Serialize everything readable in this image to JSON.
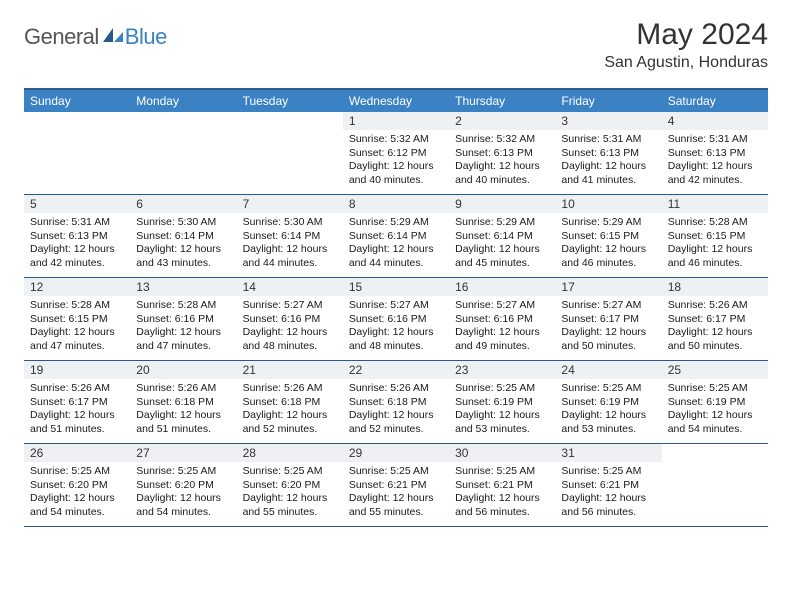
{
  "brand": {
    "word1": "General",
    "word2": "Blue"
  },
  "title": "May 2024",
  "location": "San Agustin, Honduras",
  "colors": {
    "header_bar": "#3b82c4",
    "rule": "#2a5a8a",
    "daynum_bg": "#eef1f3",
    "text": "#1a1a1a",
    "background": "#ffffff"
  },
  "dow": [
    "Sunday",
    "Monday",
    "Tuesday",
    "Wednesday",
    "Thursday",
    "Friday",
    "Saturday"
  ],
  "grid": {
    "lead_blanks": 3,
    "days": [
      {
        "n": "1",
        "sr": "5:32 AM",
        "ss": "6:12 PM",
        "dl": "12 hours and 40 minutes."
      },
      {
        "n": "2",
        "sr": "5:32 AM",
        "ss": "6:13 PM",
        "dl": "12 hours and 40 minutes."
      },
      {
        "n": "3",
        "sr": "5:31 AM",
        "ss": "6:13 PM",
        "dl": "12 hours and 41 minutes."
      },
      {
        "n": "4",
        "sr": "5:31 AM",
        "ss": "6:13 PM",
        "dl": "12 hours and 42 minutes."
      },
      {
        "n": "5",
        "sr": "5:31 AM",
        "ss": "6:13 PM",
        "dl": "12 hours and 42 minutes."
      },
      {
        "n": "6",
        "sr": "5:30 AM",
        "ss": "6:14 PM",
        "dl": "12 hours and 43 minutes."
      },
      {
        "n": "7",
        "sr": "5:30 AM",
        "ss": "6:14 PM",
        "dl": "12 hours and 44 minutes."
      },
      {
        "n": "8",
        "sr": "5:29 AM",
        "ss": "6:14 PM",
        "dl": "12 hours and 44 minutes."
      },
      {
        "n": "9",
        "sr": "5:29 AM",
        "ss": "6:14 PM",
        "dl": "12 hours and 45 minutes."
      },
      {
        "n": "10",
        "sr": "5:29 AM",
        "ss": "6:15 PM",
        "dl": "12 hours and 46 minutes."
      },
      {
        "n": "11",
        "sr": "5:28 AM",
        "ss": "6:15 PM",
        "dl": "12 hours and 46 minutes."
      },
      {
        "n": "12",
        "sr": "5:28 AM",
        "ss": "6:15 PM",
        "dl": "12 hours and 47 minutes."
      },
      {
        "n": "13",
        "sr": "5:28 AM",
        "ss": "6:16 PM",
        "dl": "12 hours and 47 minutes."
      },
      {
        "n": "14",
        "sr": "5:27 AM",
        "ss": "6:16 PM",
        "dl": "12 hours and 48 minutes."
      },
      {
        "n": "15",
        "sr": "5:27 AM",
        "ss": "6:16 PM",
        "dl": "12 hours and 48 minutes."
      },
      {
        "n": "16",
        "sr": "5:27 AM",
        "ss": "6:16 PM",
        "dl": "12 hours and 49 minutes."
      },
      {
        "n": "17",
        "sr": "5:27 AM",
        "ss": "6:17 PM",
        "dl": "12 hours and 50 minutes."
      },
      {
        "n": "18",
        "sr": "5:26 AM",
        "ss": "6:17 PM",
        "dl": "12 hours and 50 minutes."
      },
      {
        "n": "19",
        "sr": "5:26 AM",
        "ss": "6:17 PM",
        "dl": "12 hours and 51 minutes."
      },
      {
        "n": "20",
        "sr": "5:26 AM",
        "ss": "6:18 PM",
        "dl": "12 hours and 51 minutes."
      },
      {
        "n": "21",
        "sr": "5:26 AM",
        "ss": "6:18 PM",
        "dl": "12 hours and 52 minutes."
      },
      {
        "n": "22",
        "sr": "5:26 AM",
        "ss": "6:18 PM",
        "dl": "12 hours and 52 minutes."
      },
      {
        "n": "23",
        "sr": "5:25 AM",
        "ss": "6:19 PM",
        "dl": "12 hours and 53 minutes."
      },
      {
        "n": "24",
        "sr": "5:25 AM",
        "ss": "6:19 PM",
        "dl": "12 hours and 53 minutes."
      },
      {
        "n": "25",
        "sr": "5:25 AM",
        "ss": "6:19 PM",
        "dl": "12 hours and 54 minutes."
      },
      {
        "n": "26",
        "sr": "5:25 AM",
        "ss": "6:20 PM",
        "dl": "12 hours and 54 minutes."
      },
      {
        "n": "27",
        "sr": "5:25 AM",
        "ss": "6:20 PM",
        "dl": "12 hours and 54 minutes."
      },
      {
        "n": "28",
        "sr": "5:25 AM",
        "ss": "6:20 PM",
        "dl": "12 hours and 55 minutes."
      },
      {
        "n": "29",
        "sr": "5:25 AM",
        "ss": "6:21 PM",
        "dl": "12 hours and 55 minutes."
      },
      {
        "n": "30",
        "sr": "5:25 AM",
        "ss": "6:21 PM",
        "dl": "12 hours and 56 minutes."
      },
      {
        "n": "31",
        "sr": "5:25 AM",
        "ss": "6:21 PM",
        "dl": "12 hours and 56 minutes."
      }
    ]
  },
  "labels": {
    "sunrise": "Sunrise:",
    "sunset": "Sunset:",
    "daylight": "Daylight:"
  }
}
